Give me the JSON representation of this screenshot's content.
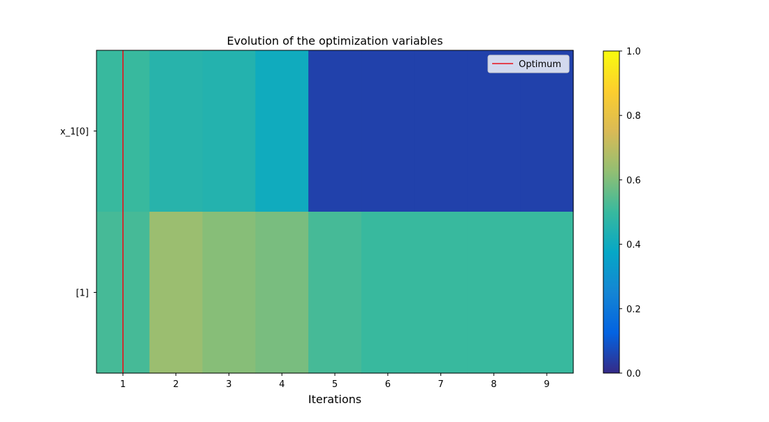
{
  "chart_data": {
    "type": "heatmap",
    "title": "Evolution of the optimization variables",
    "xlabel": "Iterations",
    "ylabel": "",
    "x": [
      1,
      2,
      3,
      4,
      5,
      6,
      7,
      8,
      9
    ],
    "y_labels": [
      "x_1[0]",
      "[1]"
    ],
    "values": [
      [
        0.5,
        0.46,
        0.45,
        0.4,
        0.05,
        0.05,
        0.05,
        0.05,
        0.05
      ],
      [
        0.52,
        0.64,
        0.61,
        0.59,
        0.52,
        0.5,
        0.5,
        0.5,
        0.5
      ]
    ],
    "colorbar": {
      "range": [
        0.0,
        1.0
      ],
      "ticks": [
        "0.0",
        "0.2",
        "0.4",
        "0.6",
        "0.8",
        "1.0"
      ]
    },
    "colormap_stops": [
      "#352a87",
      "#0363e1",
      "#1485d4",
      "#06a7c6",
      "#38b99e",
      "#92bf73",
      "#d9ba56",
      "#fcce2e",
      "#f9fb0e"
    ],
    "optimum": {
      "label": "Optimum",
      "x": 1,
      "color": "#e8101a"
    },
    "legend": {
      "position": "top-right",
      "entries": [
        "Optimum"
      ]
    }
  }
}
